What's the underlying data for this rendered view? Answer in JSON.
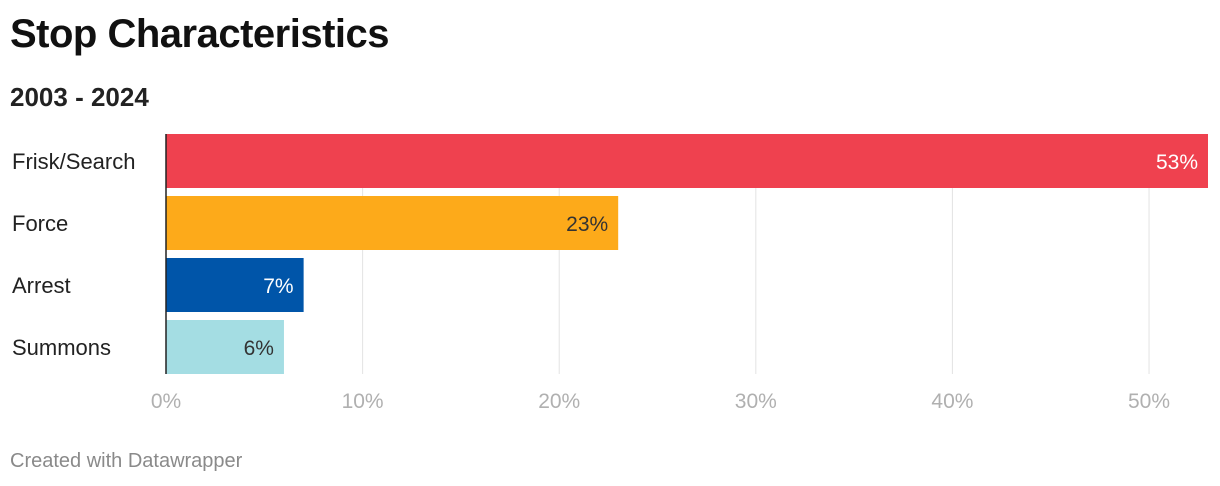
{
  "header": {
    "title": "Stop Characteristics",
    "subtitle": "2003 - 2024"
  },
  "footer": {
    "credit": "Created with Datawrapper"
  },
  "chart_data": {
    "type": "bar",
    "orientation": "horizontal",
    "categories": [
      "Frisk/Search",
      "Force",
      "Arrest",
      "Summons"
    ],
    "values": [
      53,
      23,
      7,
      6
    ],
    "value_labels": [
      "53%",
      "23%",
      "7%",
      "6%"
    ],
    "colors": [
      "#ef414f",
      "#fdaa1a",
      "#0055a9",
      "#a4dde3"
    ],
    "label_colors": [
      "#ffffff",
      "#333333",
      "#ffffff",
      "#333333"
    ],
    "xlim": [
      0,
      53
    ],
    "xticks": [
      0,
      10,
      20,
      30,
      40,
      50
    ],
    "xtick_labels": [
      "0%",
      "10%",
      "20%",
      "30%",
      "40%",
      "50%"
    ],
    "grid": true,
    "legend": "none"
  }
}
